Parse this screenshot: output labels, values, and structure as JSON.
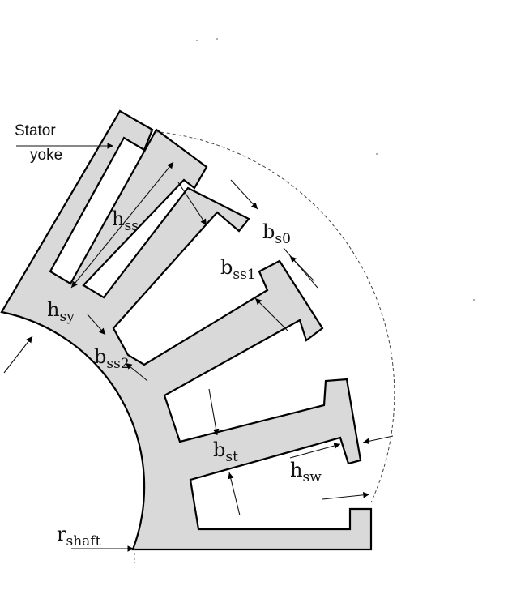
{
  "colors": {
    "lamination_fill": "#d9d9d9",
    "outline": "#000000",
    "dim_line": "#222222"
  },
  "labels": {
    "stator_yoke_line1": "Stator",
    "stator_yoke_line2": "yoke",
    "hss": {
      "main": "h",
      "sub": "ss"
    },
    "bs0": {
      "main": "b",
      "sub": "s0"
    },
    "bss1": {
      "main": "b",
      "sub": "ss1"
    },
    "hsy": {
      "main": "h",
      "sub": "sy"
    },
    "bss2": {
      "main": "b",
      "sub": "ss2"
    },
    "bst": {
      "main": "b",
      "sub": "st"
    },
    "hsw": {
      "main": "h",
      "sub": "sw"
    },
    "rshaft": {
      "main": "r",
      "sub": "shaft"
    }
  }
}
